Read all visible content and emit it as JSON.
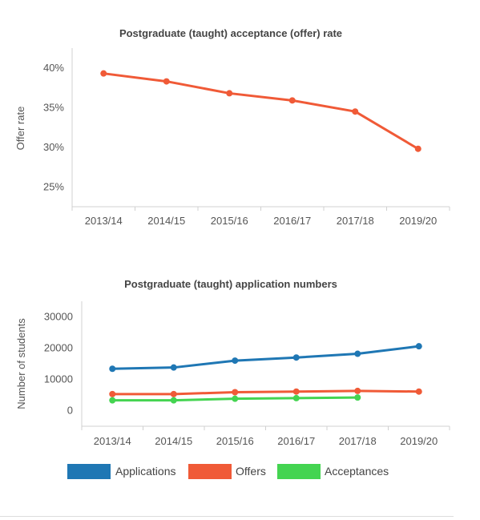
{
  "chart_data": [
    {
      "type": "line",
      "title": "Postgraduate (taught) acceptance (offer) rate",
      "xlabel": "",
      "ylabel": "Offer rate",
      "categories": [
        "2013/14",
        "2014/15",
        "2015/16",
        "2016/17",
        "2017/18",
        "2019/20"
      ],
      "series": [
        {
          "color": "#f05a37",
          "values": [
            39.3,
            38.3,
            36.8,
            35.9,
            34.5,
            29.8
          ]
        }
      ],
      "ylim": [
        22.5,
        42.5
      ],
      "yticks": [
        25,
        30,
        35,
        40
      ],
      "ytick_labels": [
        "25%",
        "30%",
        "35%",
        "40%"
      ],
      "grid": false
    },
    {
      "type": "line",
      "title": "Postgraduate (taught) application numbers",
      "xlabel": "",
      "ylabel": "Number of students",
      "categories": [
        "2013/14",
        "2014/15",
        "2015/16",
        "2016/17",
        "2017/18",
        "2019/20"
      ],
      "series": [
        {
          "name": "Applications",
          "color": "#1f77b4",
          "values": [
            13400,
            13800,
            16000,
            17000,
            18200,
            20600
          ]
        },
        {
          "name": "Offers",
          "color": "#f05a37",
          "values": [
            5300,
            5300,
            5900,
            6100,
            6300,
            6100
          ]
        },
        {
          "name": "Acceptances",
          "color": "#44d451",
          "values": [
            3300,
            3300,
            3800,
            4000,
            4200,
            null
          ]
        }
      ],
      "ylim": [
        -5000,
        35000
      ],
      "yticks": [
        0,
        10000,
        20000,
        30000
      ],
      "ytick_labels": [
        "0",
        "10000",
        "20000",
        "30000"
      ],
      "grid": false,
      "legend": "bottom-left"
    }
  ]
}
